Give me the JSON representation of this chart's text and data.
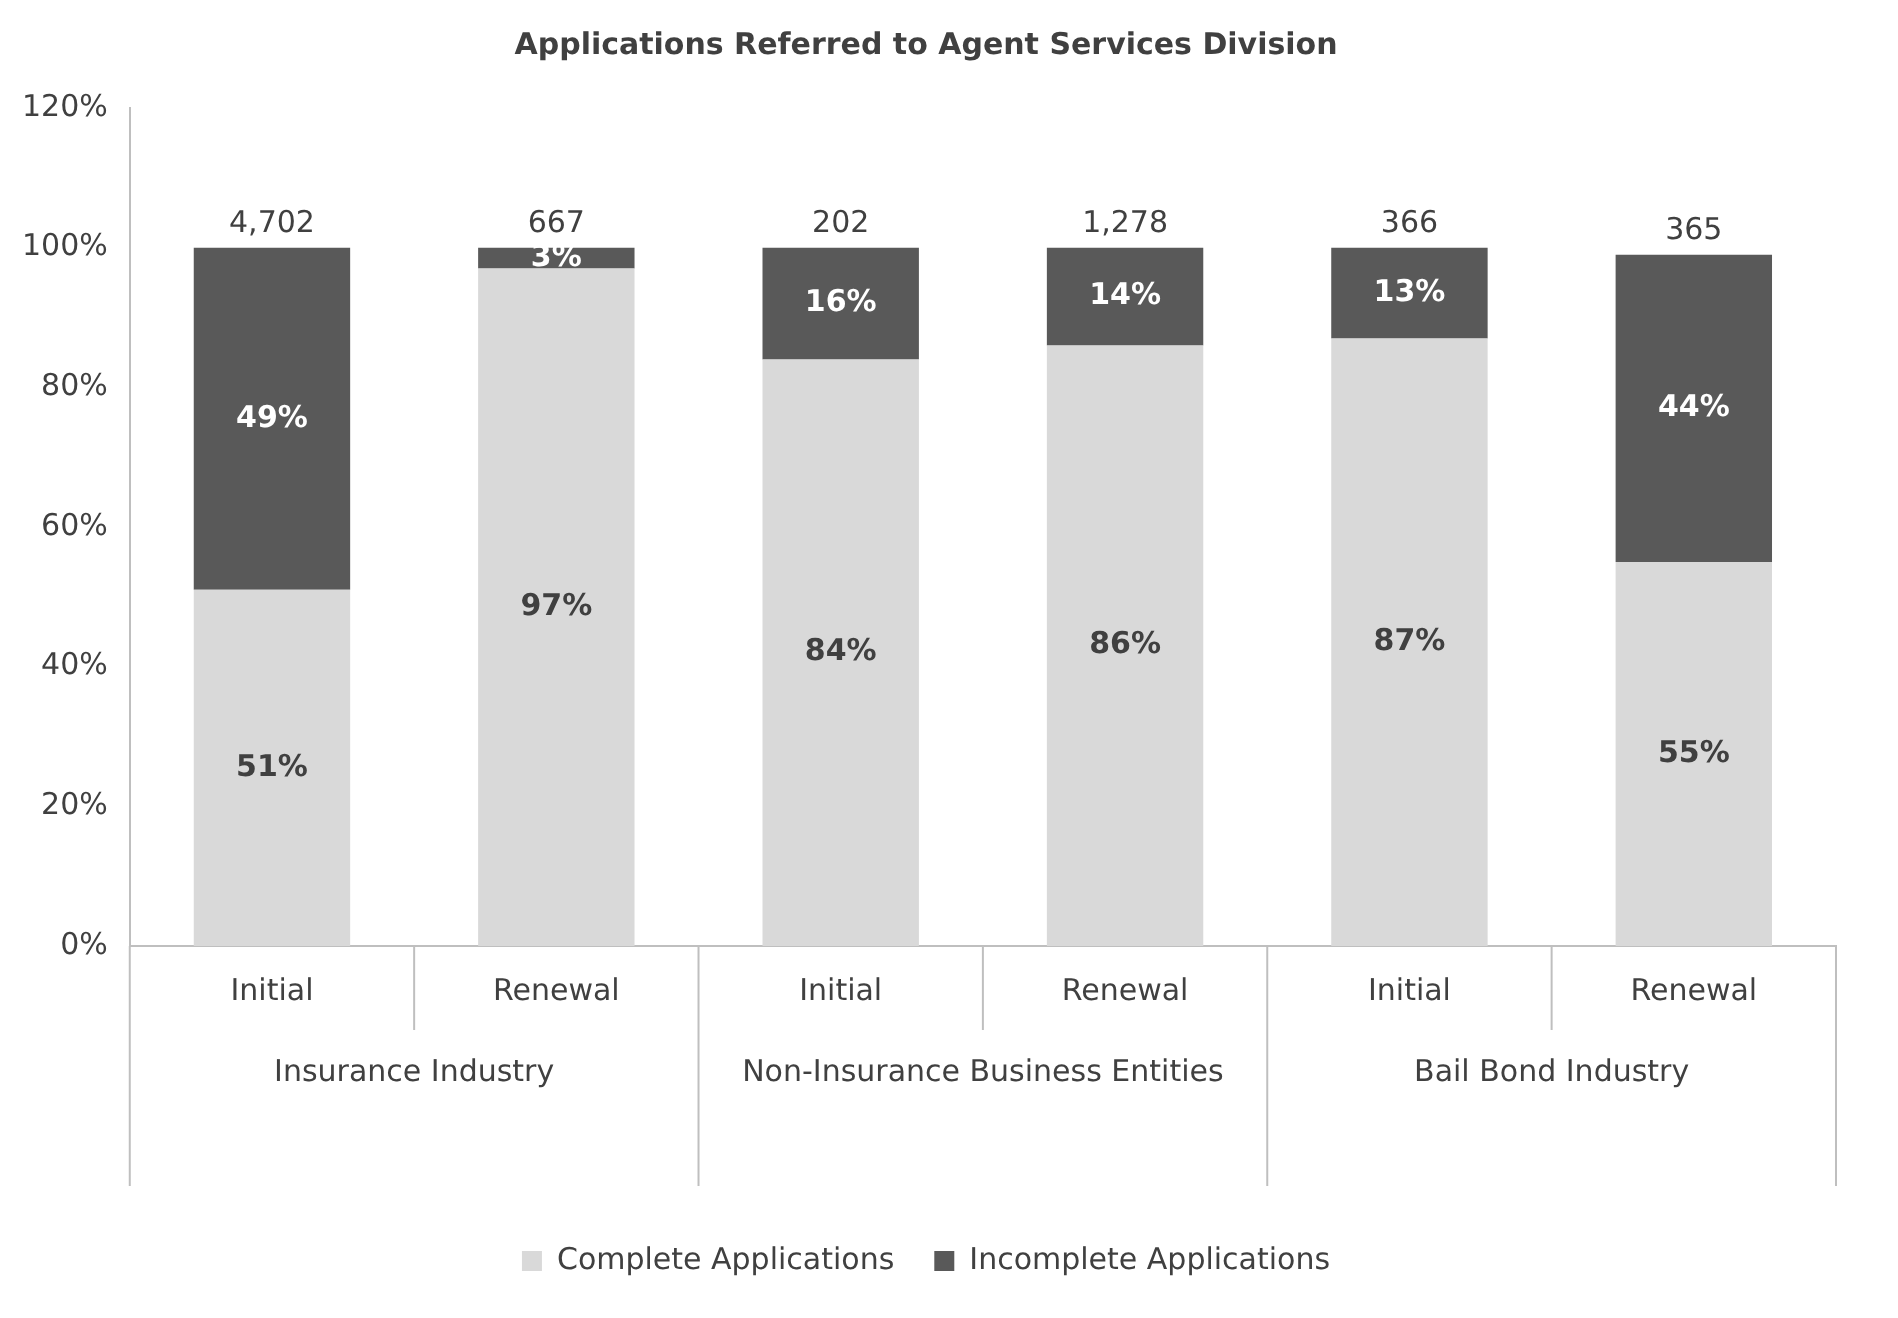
{
  "chart_data": {
    "type": "bar",
    "title": "Applications Referred to Agent Services Division",
    "categories": [
      "Initial",
      "Renewal",
      "Initial",
      "Renewal",
      "Initial",
      "Renewal"
    ],
    "stacked": true,
    "ylim": [
      0,
      120
    ],
    "yticks": [
      {
        "value": 0,
        "label": "0%"
      },
      {
        "value": 20,
        "label": "20%"
      },
      {
        "value": 40,
        "label": "40%"
      },
      {
        "value": 60,
        "label": "60%"
      },
      {
        "value": 80,
        "label": "80%"
      },
      {
        "value": 100,
        "label": "100%"
      },
      {
        "value": 120,
        "label": "120%"
      }
    ],
    "grid": false,
    "legend": "bottom",
    "series": [
      {
        "name": "Complete Applications",
        "color": "#d9d9d9",
        "values": [
          51,
          97,
          84,
          86,
          87,
          55
        ],
        "value_labels": [
          "51%",
          "97%",
          "84%",
          "86%",
          "87%",
          "55%"
        ]
      },
      {
        "name": "Incomplete Applications",
        "color": "#595959",
        "values": [
          49,
          3,
          16,
          14,
          13,
          44
        ],
        "value_labels": [
          "49%",
          "3%",
          "16%",
          "14%",
          "13%",
          "44%"
        ]
      }
    ],
    "annotations": [
      "4,702",
      "667",
      "202",
      "1,278",
      "366",
      "365",
      "Insurance Industry",
      "Non-Insurance Business Entities",
      "Bail Bond Industry"
    ]
  }
}
